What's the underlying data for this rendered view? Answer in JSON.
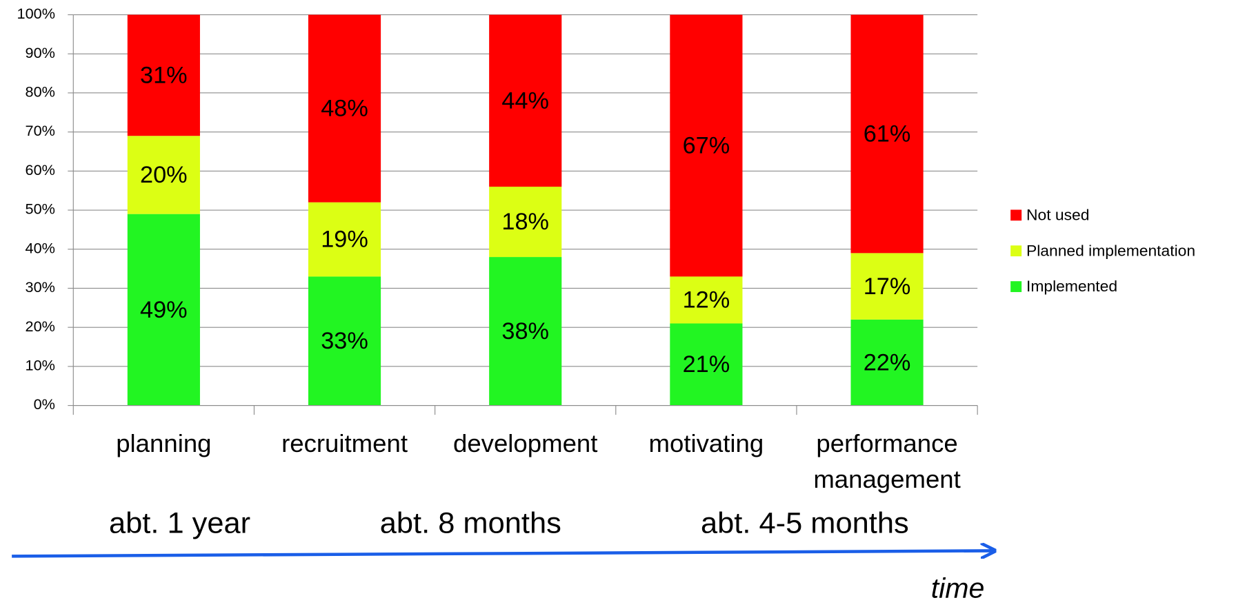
{
  "chart_data": {
    "type": "stacked_bar",
    "categories": [
      "planning",
      "recruitment",
      "development",
      "motivating",
      "performance management"
    ],
    "series": [
      {
        "name": "Implemented",
        "color": "#22f522",
        "values": [
          49,
          33,
          38,
          21,
          22
        ],
        "value_labels": [
          "49%",
          "33%",
          "38%",
          "21%",
          "22%"
        ]
      },
      {
        "name": "Planned implementation",
        "color": "#dcff14",
        "values": [
          20,
          19,
          18,
          12,
          17
        ],
        "value_labels": [
          "20%",
          "19%",
          "18%",
          "12%",
          "17%"
        ]
      },
      {
        "name": "Not used",
        "color": "#ff0000",
        "values": [
          31,
          48,
          44,
          67,
          61
        ],
        "value_labels": [
          "31%",
          "48%",
          "44%",
          "67%",
          "61%"
        ]
      }
    ],
    "ylim": [
      0,
      100
    ],
    "yticks": [
      {
        "value": 0,
        "label": "0%"
      },
      {
        "value": 10,
        "label": "10%"
      },
      {
        "value": 20,
        "label": "20%"
      },
      {
        "value": 30,
        "label": "30%"
      },
      {
        "value": 40,
        "label": "40%"
      },
      {
        "value": 50,
        "label": "50%"
      },
      {
        "value": 60,
        "label": "60%"
      },
      {
        "value": 70,
        "label": "70%"
      },
      {
        "value": 80,
        "label": "80%"
      },
      {
        "value": 90,
        "label": "90%"
      },
      {
        "value": 100,
        "label": "100%"
      }
    ],
    "grid": true,
    "legend": "right",
    "annotations": [
      "abt. 1 year",
      "abt. 8 months",
      "abt. 4-5 months",
      "time"
    ]
  }
}
